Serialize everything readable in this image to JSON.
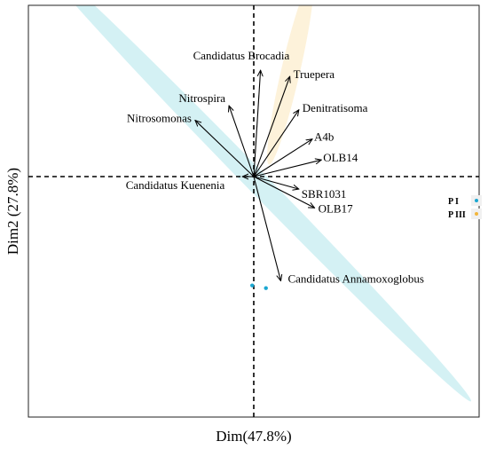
{
  "chart_data": {
    "type": "scatter",
    "subtype": "pca-biplot",
    "xlabel": "Dim(47.8%)",
    "ylabel": "Dim2 (27.8%)",
    "xlim": [
      -1.0,
      1.0
    ],
    "ylim": [
      -1.0,
      1.0
    ],
    "grid": false,
    "reference_lines": {
      "x": 0,
      "y": 0,
      "style": "dashed"
    },
    "legend_position": "right",
    "legend": [
      {
        "label": "P I",
        "color": "#1ba7d1"
      },
      {
        "label": "P III",
        "color": "#f2b63b"
      }
    ],
    "groups": [
      {
        "name": "P I",
        "color": "#1ba7d1",
        "ellipse_fill": "#cdeef2",
        "ellipse": {
          "cx": 0.0,
          "cy": -0.01,
          "rx": 1.38,
          "ry": 0.052,
          "angle_deg": -45.7
        },
        "points": [
          [
            -0.007,
            -0.522
          ],
          [
            0.054,
            -0.535
          ]
        ]
      },
      {
        "name": "P III",
        "color": "#f2b63b",
        "ellipse_fill": "#fdf0d4",
        "ellipse": {
          "cx": 0.162,
          "cy": 0.5,
          "rx": 0.42,
          "ry": 0.045,
          "angle_deg": 77
        },
        "points": []
      }
    ],
    "loadings": [
      {
        "name": "Candidatus  Brocadia",
        "x": 0.03,
        "y": 0.51
      },
      {
        "name": "Nitrospira",
        "x": -0.11,
        "y": 0.34
      },
      {
        "name": "Nitrosomonas",
        "x": -0.26,
        "y": 0.27
      },
      {
        "name": "Truepera",
        "x": 0.16,
        "y": 0.48
      },
      {
        "name": "Denitratisoma",
        "x": 0.2,
        "y": 0.32
      },
      {
        "name": "A4b",
        "x": 0.26,
        "y": 0.18
      },
      {
        "name": "OLB14",
        "x": 0.3,
        "y": 0.08
      },
      {
        "name": "Candidatus  Kuenenia",
        "x": -0.05,
        "y": 0.0
      },
      {
        "name": "SBR1031",
        "x": 0.2,
        "y": -0.06
      },
      {
        "name": "OLB17",
        "x": 0.27,
        "y": -0.15
      },
      {
        "name": "Candidatus  Annamoxoglobus",
        "x": 0.12,
        "y": -0.5
      }
    ]
  }
}
